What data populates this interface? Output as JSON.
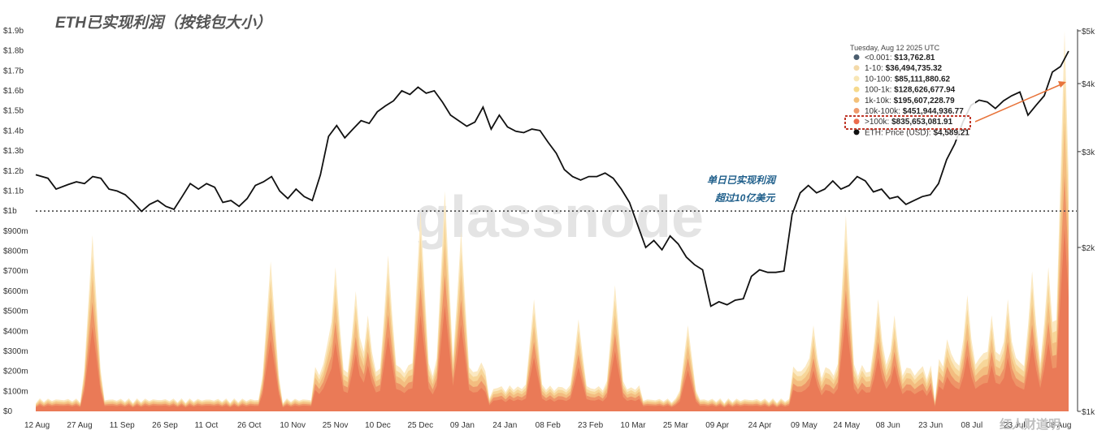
{
  "chart_data": {
    "type": "area",
    "title": "ETH已实现利润（按钱包大小）",
    "x_ticks": [
      "12 Aug",
      "27 Aug",
      "11 Sep",
      "26 Sep",
      "11 Oct",
      "26 Oct",
      "10 Nov",
      "25 Nov",
      "10 Dec",
      "25 Dec",
      "09 Jan",
      "24 Jan",
      "08 Feb",
      "23 Feb",
      "10 Mar",
      "25 Mar",
      "09 Apr",
      "24 Apr",
      "09 May",
      "24 May",
      "08 Jun",
      "23 Jun",
      "08 Jul",
      "23 Jul",
      "08 Aug"
    ],
    "y_left_ticks": [
      "$0",
      "$100m",
      "$200m",
      "$300m",
      "$400m",
      "$500m",
      "$600m",
      "$700m",
      "$800m",
      "$900m",
      "$1b",
      "$1.1b",
      "$1.2b",
      "$1.3b",
      "$1.4b",
      "$1.5b",
      "$1.6b",
      "$1.7b",
      "$1.8b",
      "$1.9b"
    ],
    "y_left_range": [
      0,
      1900000000
    ],
    "y_right_ticks": [
      "$1k",
      "$2k",
      "$3k",
      "$4k",
      "$5k"
    ],
    "y_right_scale": "log",
    "y_right_range": [
      1000,
      5000
    ],
    "threshold": {
      "value": 1000000000,
      "style": "dotted"
    },
    "legend": {
      "date": "Tuesday, Aug 12 2025 UTC",
      "entries": [
        {
          "name": "<0.001",
          "value": "$13,762.81",
          "color": "#4a5d6e"
        },
        {
          "name": "1-10",
          "value": "$36,494,735.32",
          "color": "#f3d9a8"
        },
        {
          "name": "10-100",
          "value": "$85,111,880.62",
          "color": "#f8e6b5"
        },
        {
          "name": "100-1k",
          "value": "$128,626,677.94",
          "color": "#f6d98c"
        },
        {
          "name": "1k-10k",
          "value": "$195,607,228.79",
          "color": "#f3c17a"
        },
        {
          "name": "10k-100k",
          "value": "$451,944,936.77",
          "color": "#ef9a6d"
        },
        {
          "name": ">100k",
          "value": "$835,653,081.91",
          "color": "#ec6b4d"
        },
        {
          "name": "ETH: Price (USD)",
          "value": "$4,589.21",
          "color": "#111111"
        }
      ]
    },
    "eth_price_points": [
      [
        0,
        2720
      ],
      [
        3,
        2680
      ],
      [
        5,
        2560
      ],
      [
        8,
        2610
      ],
      [
        10,
        2640
      ],
      [
        12,
        2620
      ],
      [
        14,
        2700
      ],
      [
        16,
        2680
      ],
      [
        18,
        2560
      ],
      [
        20,
        2540
      ],
      [
        22,
        2500
      ],
      [
        24,
        2420
      ],
      [
        26,
        2330
      ],
      [
        28,
        2400
      ],
      [
        30,
        2440
      ],
      [
        32,
        2380
      ],
      [
        34,
        2350
      ],
      [
        36,
        2480
      ],
      [
        38,
        2620
      ],
      [
        40,
        2560
      ],
      [
        42,
        2620
      ],
      [
        44,
        2580
      ],
      [
        46,
        2420
      ],
      [
        48,
        2440
      ],
      [
        50,
        2380
      ],
      [
        52,
        2460
      ],
      [
        54,
        2600
      ],
      [
        56,
        2640
      ],
      [
        58,
        2700
      ],
      [
        60,
        2540
      ],
      [
        62,
        2460
      ],
      [
        64,
        2560
      ],
      [
        66,
        2480
      ],
      [
        68,
        2440
      ],
      [
        70,
        2720
      ],
      [
        72,
        3200
      ],
      [
        74,
        3350
      ],
      [
        76,
        3180
      ],
      [
        78,
        3300
      ],
      [
        80,
        3420
      ],
      [
        82,
        3380
      ],
      [
        84,
        3550
      ],
      [
        86,
        3640
      ],
      [
        88,
        3720
      ],
      [
        90,
        3880
      ],
      [
        92,
        3820
      ],
      [
        94,
        3940
      ],
      [
        96,
        3840
      ],
      [
        98,
        3880
      ],
      [
        100,
        3700
      ],
      [
        102,
        3500
      ],
      [
        104,
        3420
      ],
      [
        106,
        3340
      ],
      [
        108,
        3400
      ],
      [
        110,
        3620
      ],
      [
        112,
        3300
      ],
      [
        114,
        3500
      ],
      [
        116,
        3330
      ],
      [
        118,
        3270
      ],
      [
        120,
        3250
      ],
      [
        122,
        3300
      ],
      [
        124,
        3280
      ],
      [
        126,
        3120
      ],
      [
        128,
        2980
      ],
      [
        130,
        2780
      ],
      [
        132,
        2700
      ],
      [
        134,
        2660
      ],
      [
        136,
        2700
      ],
      [
        138,
        2700
      ],
      [
        140,
        2740
      ],
      [
        142,
        2680
      ],
      [
        144,
        2560
      ],
      [
        146,
        2420
      ],
      [
        148,
        2200
      ],
      [
        150,
        2000
      ],
      [
        152,
        2060
      ],
      [
        154,
        1980
      ],
      [
        156,
        2100
      ],
      [
        158,
        2030
      ],
      [
        160,
        1920
      ],
      [
        162,
        1860
      ],
      [
        164,
        1820
      ],
      [
        166,
        1560
      ],
      [
        168,
        1590
      ],
      [
        170,
        1570
      ],
      [
        172,
        1600
      ],
      [
        174,
        1610
      ],
      [
        176,
        1770
      ],
      [
        178,
        1820
      ],
      [
        180,
        1800
      ],
      [
        182,
        1800
      ],
      [
        184,
        1810
      ],
      [
        186,
        2300
      ],
      [
        188,
        2520
      ],
      [
        190,
        2600
      ],
      [
        192,
        2520
      ],
      [
        194,
        2560
      ],
      [
        196,
        2650
      ],
      [
        198,
        2560
      ],
      [
        200,
        2600
      ],
      [
        202,
        2700
      ],
      [
        204,
        2650
      ],
      [
        206,
        2530
      ],
      [
        208,
        2560
      ],
      [
        210,
        2460
      ],
      [
        212,
        2480
      ],
      [
        214,
        2400
      ],
      [
        216,
        2440
      ],
      [
        218,
        2480
      ],
      [
        220,
        2500
      ],
      [
        222,
        2620
      ],
      [
        224,
        2900
      ],
      [
        226,
        3100
      ],
      [
        228,
        3400
      ],
      [
        230,
        3650
      ],
      [
        232,
        3730
      ],
      [
        234,
        3700
      ],
      [
        236,
        3600
      ],
      [
        238,
        3720
      ],
      [
        240,
        3800
      ],
      [
        242,
        3860
      ],
      [
        244,
        3500
      ],
      [
        246,
        3650
      ],
      [
        248,
        3800
      ],
      [
        250,
        4200
      ],
      [
        252,
        4300
      ],
      [
        254,
        4589
      ]
    ],
    "annotation": [
      "单日已实现利润",
      "超过10亿美元"
    ],
    "watermark": "glassnode",
    "source_brand": "红人财道明"
  }
}
